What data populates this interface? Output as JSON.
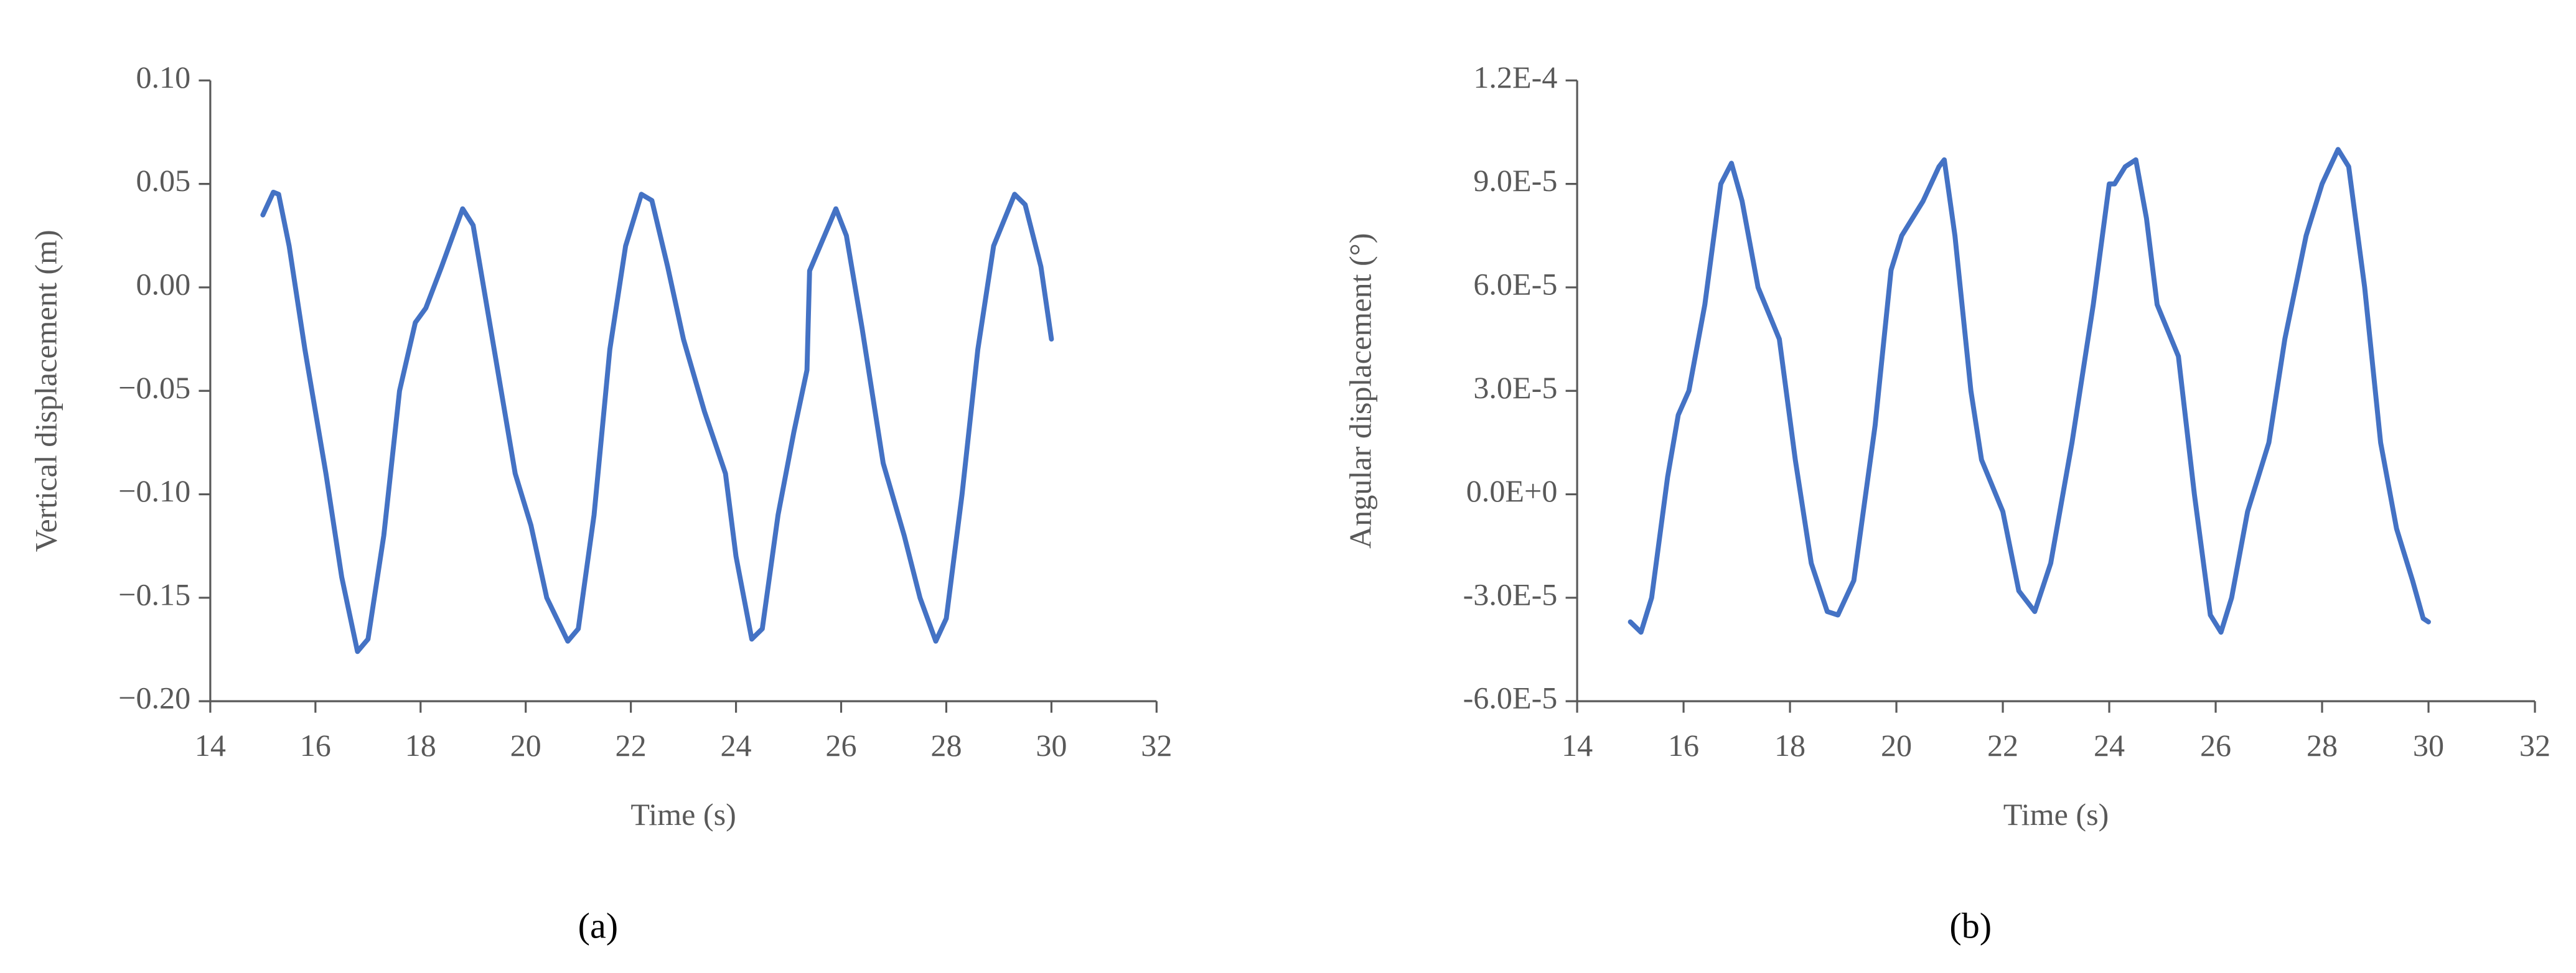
{
  "chart_data": [
    {
      "type": "line",
      "panel_label": "(a)",
      "x_label": "Time (s)",
      "y_label": "Vertical displacement (m)",
      "color": "#4472c4",
      "xlim": [
        14,
        32
      ],
      "xticks": [
        14,
        16,
        18,
        20,
        22,
        24,
        26,
        28,
        30,
        32
      ],
      "ylim": [
        -0.2,
        0.1
      ],
      "yticks": [
        {
          "value": -0.2,
          "label": "−0.20"
        },
        {
          "value": -0.15,
          "label": "−0.15"
        },
        {
          "value": -0.1,
          "label": "−0.10"
        },
        {
          "value": -0.05,
          "label": "−0.05"
        },
        {
          "value": 0,
          "label": "0.00"
        },
        {
          "value": 0.05,
          "label": "0.05"
        },
        {
          "value": 0.1,
          "label": "0.10"
        }
      ],
      "x": [
        15.0,
        15.2,
        15.3,
        15.5,
        15.8,
        16.2,
        16.5,
        16.8,
        17.0,
        17.3,
        17.6,
        17.9,
        18.1,
        18.4,
        18.8,
        19.0,
        19.4,
        19.8,
        20.1,
        20.4,
        20.8,
        21.0,
        21.3,
        21.6,
        21.9,
        22.2,
        22.4,
        22.7,
        23.0,
        23.4,
        23.8,
        24.0,
        24.3,
        24.5,
        24.8,
        25.1,
        25.35,
        25.4,
        25.6,
        25.9,
        26.1,
        26.4,
        26.8,
        27.2,
        27.5,
        27.8,
        28.0,
        28.3,
        28.6,
        28.9,
        29.3,
        29.5,
        29.8,
        30.0
      ],
      "values": [
        0.035,
        0.046,
        0.045,
        0.02,
        -0.03,
        -0.09,
        -0.14,
        -0.176,
        -0.17,
        -0.12,
        -0.05,
        -0.017,
        -0.01,
        0.01,
        0.038,
        0.03,
        -0.03,
        -0.09,
        -0.115,
        -0.15,
        -0.171,
        -0.165,
        -0.11,
        -0.03,
        0.02,
        0.045,
        0.042,
        0.01,
        -0.025,
        -0.06,
        -0.09,
        -0.13,
        -0.17,
        -0.165,
        -0.11,
        -0.07,
        -0.04,
        0.008,
        0.02,
        0.038,
        0.025,
        -0.02,
        -0.085,
        -0.12,
        -0.15,
        -0.171,
        -0.16,
        -0.1,
        -0.03,
        0.02,
        0.045,
        0.04,
        0.01,
        -0.025
      ]
    },
    {
      "type": "line",
      "panel_label": "(b)",
      "x_label": "Time (s)",
      "y_label": "Angular displacement (°)",
      "color": "#4472c4",
      "xlim": [
        14,
        32
      ],
      "xticks": [
        14,
        16,
        18,
        20,
        22,
        24,
        26,
        28,
        30,
        32
      ],
      "ylim": [
        -6e-05,
        0.00012
      ],
      "yticks": [
        {
          "value": -6e-05,
          "label": "-6.0E-5"
        },
        {
          "value": -3e-05,
          "label": "-3.0E-5"
        },
        {
          "value": 0,
          "label": "0.0E+0"
        },
        {
          "value": 3e-05,
          "label": "3.0E-5"
        },
        {
          "value": 6e-05,
          "label": "6.0E-5"
        },
        {
          "value": 9e-05,
          "label": "9.0E-5"
        },
        {
          "value": 0.00012,
          "label": "1.2E-4"
        }
      ],
      "x": [
        15.0,
        15.2,
        15.4,
        15.7,
        15.9,
        16.1,
        16.4,
        16.7,
        16.9,
        17.1,
        17.4,
        17.8,
        18.1,
        18.4,
        18.7,
        18.9,
        19.2,
        19.6,
        19.9,
        20.1,
        20.5,
        20.8,
        20.9,
        21.1,
        21.4,
        21.6,
        22.0,
        22.3,
        22.6,
        22.9,
        23.3,
        23.7,
        24.0,
        24.1,
        24.3,
        24.5,
        24.7,
        24.9,
        25.3,
        25.6,
        25.9,
        26.1,
        26.3,
        26.6,
        27.0,
        27.3,
        27.7,
        28.0,
        28.3,
        28.5,
        28.8,
        29.1,
        29.4,
        29.7,
        29.9,
        30.0
      ],
      "values": [
        -3.7e-05,
        -4e-05,
        -3e-05,
        5e-06,
        2.3e-05,
        3e-05,
        5.5e-05,
        9e-05,
        9.6e-05,
        8.5e-05,
        6e-05,
        4.5e-05,
        1e-05,
        -2e-05,
        -3.4e-05,
        -3.5e-05,
        -2.5e-05,
        2e-05,
        6.5e-05,
        7.5e-05,
        8.5e-05,
        9.5e-05,
        9.7e-05,
        7.5e-05,
        3e-05,
        1e-05,
        -5e-06,
        -2.8e-05,
        -3.4e-05,
        -2e-05,
        1.5e-05,
        5.5e-05,
        9e-05,
        9e-05,
        9.5e-05,
        9.7e-05,
        8e-05,
        5.5e-05,
        4e-05,
        0.0,
        -3.5e-05,
        -4e-05,
        -3e-05,
        -5e-06,
        1.5e-05,
        4.5e-05,
        7.5e-05,
        9e-05,
        0.0001,
        9.5e-05,
        6e-05,
        1.5e-05,
        -1e-05,
        -2.5e-05,
        -3.6e-05,
        -3.7e-05
      ]
    }
  ]
}
